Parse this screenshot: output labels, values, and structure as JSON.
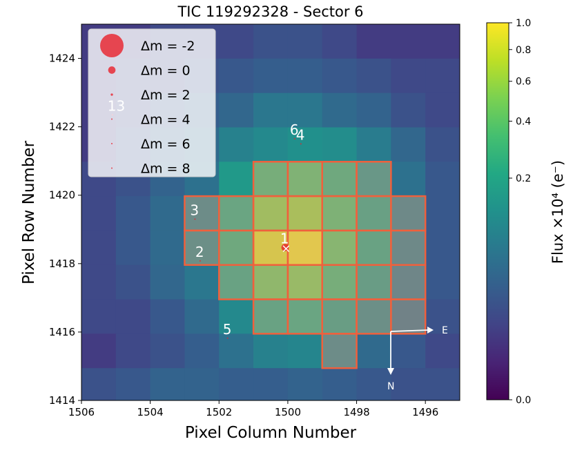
{
  "chart_data": {
    "type": "heatmap",
    "title": "TIC 119292328 - Sector 6",
    "xlabel": "Pixel Column Number",
    "ylabel": "Pixel Row Number",
    "x_range": [
      1506,
      1495
    ],
    "y_range": [
      1414,
      1425
    ],
    "x_ticks": [
      "1506",
      "1504",
      "1502",
      "1500",
      "1498",
      "1496"
    ],
    "x_tick_values": [
      1506,
      1504,
      1502,
      1500,
      1498,
      1496
    ],
    "y_ticks": [
      "1414",
      "1416",
      "1418",
      "1420",
      "1422",
      "1424"
    ],
    "y_tick_values": [
      1414,
      1416,
      1418,
      1420,
      1422,
      1424
    ],
    "colorbar": {
      "label": "Flux ×10⁴ (e⁻)",
      "ticks": [
        "0.0",
        "0.2",
        "0.4",
        "0.6",
        "0.8",
        "1.0"
      ],
      "tick_values": [
        0.0,
        0.2,
        0.4,
        0.6,
        0.8,
        1.0
      ],
      "scale": "power-compressed (0.2 near middle)",
      "colormap": "viridis"
    },
    "grid_columns_left_to_right": [
      1506,
      1505,
      1504,
      1503,
      1502,
      1501,
      1500,
      1499,
      1498,
      1497,
      1496
    ],
    "grid_rows_top_to_bottom": [
      1424,
      1423,
      1422,
      1421,
      1420,
      1419,
      1418,
      1417,
      1416,
      1415,
      1414
    ],
    "flux_normalized": [
      [
        0.005,
        0.005,
        0.01,
        0.01,
        0.01,
        0.015,
        0.015,
        0.01,
        0.005,
        0.005,
        0.005
      ],
      [
        0.005,
        0.01,
        0.01,
        0.015,
        0.02,
        0.025,
        0.025,
        0.02,
        0.015,
        0.01,
        0.01
      ],
      [
        0.005,
        0.01,
        0.02,
        0.025,
        0.035,
        0.06,
        0.06,
        0.04,
        0.03,
        0.015,
        0.01
      ],
      [
        0.005,
        0.015,
        0.025,
        0.04,
        0.08,
        0.1,
        0.12,
        0.11,
        0.07,
        0.035,
        0.015
      ],
      [
        0.01,
        0.015,
        0.03,
        0.05,
        0.15,
        0.3,
        0.36,
        0.25,
        0.12,
        0.05,
        0.02
      ],
      [
        0.01,
        0.02,
        0.04,
        0.07,
        0.22,
        0.55,
        0.6,
        0.35,
        0.18,
        0.06,
        0.02
      ],
      [
        0.01,
        0.02,
        0.04,
        0.08,
        0.25,
        0.9,
        1.0,
        0.4,
        0.2,
        0.06,
        0.02
      ],
      [
        0.01,
        0.015,
        0.035,
        0.06,
        0.2,
        0.45,
        0.5,
        0.3,
        0.15,
        0.05,
        0.02
      ],
      [
        0.01,
        0.01,
        0.02,
        0.04,
        0.1,
        0.2,
        0.22,
        0.16,
        0.08,
        0.04,
        0.015
      ],
      [
        0.005,
        0.01,
        0.015,
        0.025,
        0.05,
        0.08,
        0.09,
        0.07,
        0.04,
        0.02,
        0.01
      ],
      [
        0.015,
        0.02,
        0.03,
        0.03,
        0.025,
        0.025,
        0.03,
        0.025,
        0.02,
        0.015,
        0.015
      ]
    ],
    "aperture_pixels": [
      [
        1501,
        1420
      ],
      [
        1500,
        1420
      ],
      [
        1499,
        1420
      ],
      [
        1498,
        1420
      ],
      [
        1503,
        1419
      ],
      [
        1502,
        1419
      ],
      [
        1501,
        1419
      ],
      [
        1500,
        1419
      ],
      [
        1499,
        1419
      ],
      [
        1498,
        1419
      ],
      [
        1497,
        1419
      ],
      [
        1503,
        1418
      ],
      [
        1502,
        1418
      ],
      [
        1501,
        1418
      ],
      [
        1500,
        1418
      ],
      [
        1499,
        1418
      ],
      [
        1498,
        1418
      ],
      [
        1497,
        1418
      ],
      [
        1502,
        1417
      ],
      [
        1501,
        1417
      ],
      [
        1500,
        1417
      ],
      [
        1499,
        1417
      ],
      [
        1498,
        1417
      ],
      [
        1497,
        1417
      ],
      [
        1501,
        1416
      ],
      [
        1500,
        1416
      ],
      [
        1499,
        1416
      ],
      [
        1498,
        1416
      ],
      [
        1497,
        1416
      ],
      [
        1499,
        1415
      ]
    ],
    "stars": [
      {
        "label": "1",
        "col": 1500.08,
        "row": 1418.47,
        "dm": 0
      },
      {
        "label": "2",
        "col": 1502.55,
        "row": 1418.08,
        "dm": 7
      },
      {
        "label": "3",
        "col": 1502.7,
        "row": 1419.3,
        "dm": 7
      },
      {
        "label": "4",
        "col": 1499.62,
        "row": 1421.5,
        "dm": 6
      },
      {
        "label": "5",
        "col": 1501.75,
        "row": 1415.82,
        "dm": 7
      },
      {
        "label": "6",
        "col": 1499.8,
        "row": 1421.65,
        "dm": 7
      },
      {
        "label": "13",
        "col": 1505.1,
        "row": 1422.35,
        "dm": 7
      }
    ],
    "target_marker": {
      "symbol": "×",
      "col": 1500.05,
      "row": 1418.45
    },
    "legend": {
      "placement": "top-left",
      "entries": [
        {
          "label": "Δm =  -2",
          "dm": -2
        },
        {
          "label": "Δm =  0",
          "dm": 0
        },
        {
          "label": "Δm =  2",
          "dm": 2
        },
        {
          "label": "Δm =  4",
          "dm": 4
        },
        {
          "label": "Δm =  6",
          "dm": 6
        },
        {
          "label": "Δm =  8",
          "dm": 8
        }
      ]
    },
    "compass": {
      "east_label": "E",
      "north_label": "N"
    },
    "colors": {
      "star_fill": "#e8202a",
      "aperture_edge": "#f0603c",
      "aperture_fill": "#c0a080"
    }
  }
}
